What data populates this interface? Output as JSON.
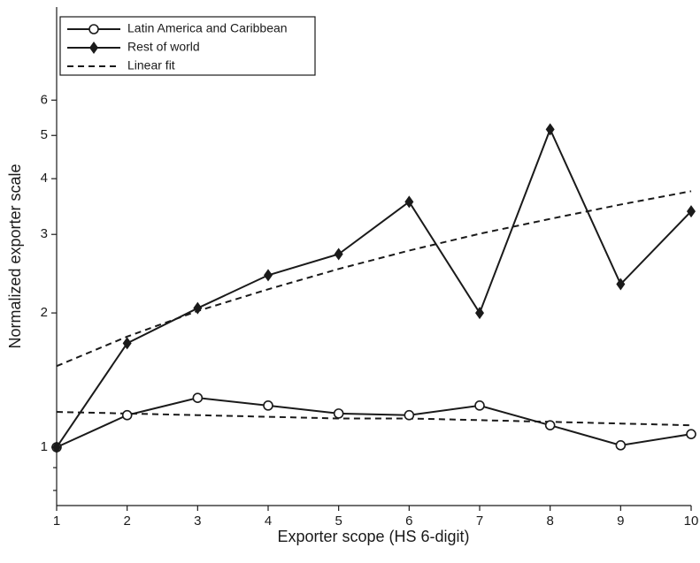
{
  "chart_data": {
    "type": "line",
    "x_label": "Exporter scope (HS 6-digit)",
    "y_label": "Normalized exporter scale",
    "x": [
      1,
      2,
      3,
      4,
      5,
      6,
      7,
      8,
      9,
      10
    ],
    "xlim": [
      1,
      10
    ],
    "xticks": [
      1,
      2,
      3,
      4,
      5,
      6,
      7,
      8,
      9,
      10
    ],
    "ylim": [
      0.74,
      9.7
    ],
    "yticks": [
      1,
      2,
      3,
      4,
      5,
      6
    ],
    "minor_yticks": [
      0.8,
      0.9
    ],
    "log_y": true,
    "legend": "top-left",
    "series": [
      {
        "name": "Latin America and Caribbean",
        "color": "#1a1a1a",
        "marker": "circle",
        "values": [
          1.0,
          1.18,
          1.29,
          1.24,
          1.19,
          1.18,
          1.24,
          1.12,
          1.01,
          1.07
        ]
      },
      {
        "name": "Rest of world",
        "color": "#1a1a1a",
        "marker": "diamond",
        "values": [
          1.0,
          1.71,
          2.05,
          2.43,
          2.71,
          3.55,
          2.0,
          5.16,
          2.32,
          3.38
        ]
      }
    ],
    "fit_name": "Linear fit",
    "fit_color": "#1a1a1a",
    "fits": [
      {
        "values": [
          1.2,
          1.19,
          1.18,
          1.17,
          1.16,
          1.16,
          1.15,
          1.14,
          1.13,
          1.12
        ]
      },
      {
        "values": [
          1.52,
          1.77,
          2.02,
          2.26,
          2.51,
          2.76,
          3.01,
          3.25,
          3.5,
          3.75
        ]
      }
    ]
  }
}
